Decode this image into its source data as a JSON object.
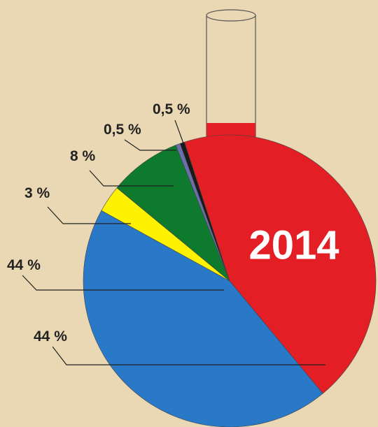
{
  "chart_data": {
    "type": "pie",
    "title": "2014",
    "categories": [
      "44 %",
      "44 %",
      "3 %",
      "8 %",
      "0,5 %",
      "0,5 %"
    ],
    "values": [
      44,
      44,
      3,
      8,
      0.5,
      0.5
    ],
    "colors": [
      "#e41e25",
      "#2a78c8",
      "#fff200",
      "#0d7a2e",
      "#6b6fae",
      "#1a1a1a"
    ]
  }
}
